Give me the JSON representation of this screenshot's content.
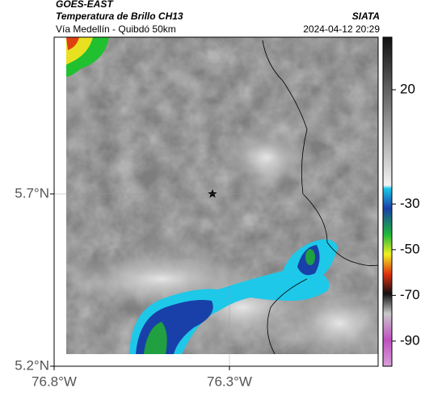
{
  "header": {
    "title": "GOES-EAST",
    "subtitle": "Temperatura de Brillo CH13",
    "source": "SIATA",
    "route": "Vía Medellín - Quibdó 50km",
    "datetime": "2024-04-12 20:29"
  },
  "map": {
    "lat_lim": [
      5.2,
      6.155
    ],
    "lon_lim": [
      -76.8,
      -75.876
    ],
    "lat_ticks": [
      {
        "value": 5.7,
        "label": "5.7°N"
      },
      {
        "value": 5.2,
        "label": "5.2°N"
      }
    ],
    "lon_ticks": [
      {
        "value": -76.8,
        "label": "76.8°W"
      },
      {
        "value": -76.3,
        "label": "76.3°W"
      }
    ],
    "grid": true
  },
  "colorbar": {
    "lim": [
      -101,
      43
    ],
    "ticks": [
      20,
      -30,
      -50,
      -70,
      -90
    ]
  }
}
